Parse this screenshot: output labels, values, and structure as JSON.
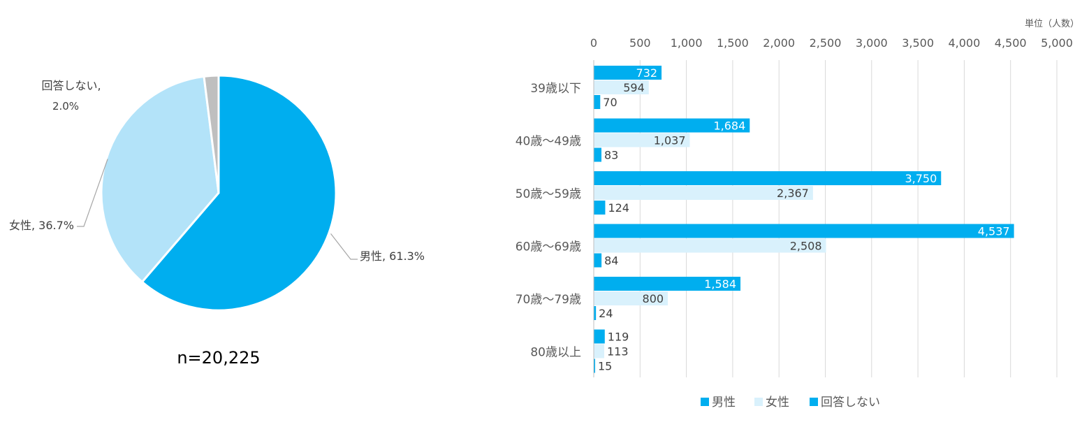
{
  "chart_data": [
    {
      "type": "pie",
      "slices": [
        {
          "name": "男性",
          "value": 61.3,
          "label": "男性, 61.3%",
          "color": "#00aeef"
        },
        {
          "name": "女性",
          "value": 36.7,
          "label": "女性, 36.7%",
          "color": "#b3e3f9"
        },
        {
          "name": "回答しない",
          "value": 2.0,
          "label_line1": "回答しない,",
          "label_line2": "2.0%",
          "color": "#bfbfbf"
        }
      ],
      "note": "n=20,225"
    },
    {
      "type": "bar",
      "orientation": "horizontal",
      "unit_label": "単位（人数）",
      "categories": [
        "39歳以下",
        "40歳～49歳",
        "50歳～59歳",
        "60歳～69歳",
        "70歳～79歳",
        "80歳以上"
      ],
      "series": [
        {
          "name": "男性",
          "values": [
            732,
            1684,
            3750,
            4537,
            1584,
            119
          ],
          "labels": [
            "732",
            "1,684",
            "3,750",
            "4,537",
            "1,584",
            "119"
          ],
          "color": "#00aeef"
        },
        {
          "name": "女性",
          "values": [
            594,
            1037,
            2367,
            2508,
            800,
            113
          ],
          "labels": [
            "594",
            "1,037",
            "2,367",
            "2,508",
            "800",
            "113"
          ],
          "color": "#d9f1fc"
        },
        {
          "name": "回答しない",
          "values": [
            70,
            83,
            124,
            84,
            24,
            15
          ],
          "labels": [
            "70",
            "83",
            "124",
            "84",
            "24",
            "15"
          ],
          "color": "#00aeef"
        }
      ],
      "xlim": [
        0,
        5000
      ],
      "xticks": [
        0,
        500,
        1000,
        1500,
        2000,
        2500,
        3000,
        3500,
        4000,
        4500,
        5000
      ],
      "xtick_labels": [
        "0",
        "500",
        "1,000",
        "1,500",
        "2,000",
        "2,500",
        "3,000",
        "3,500",
        "4,000",
        "4,500",
        "5,000"
      ],
      "grid": true,
      "legend_position": "bottom",
      "legend": [
        "男性",
        "女性",
        "回答しない"
      ]
    }
  ]
}
